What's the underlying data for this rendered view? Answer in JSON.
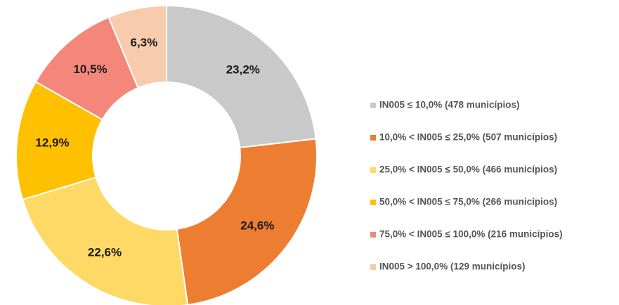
{
  "chart_data": {
    "type": "donut",
    "categories": [
      "IN005 ≤ 10,0% (478 municípios)",
      "10,0% < IN005 ≤ 25,0% (507 municípios)",
      "25,0% < IN005 ≤ 50,0% (466 municípios)",
      "50,0% < IN005 ≤ 75,0% (266 municípios)",
      "75,0% < IN005 ≤ 100,0% (216 municípios)",
      "IN005 > 100,0% (129 municípios)"
    ],
    "values": [
      23.2,
      24.6,
      22.6,
      12.9,
      10.5,
      6.3
    ],
    "value_labels": [
      "23,2%",
      "24,6%",
      "22,6%",
      "12,9%",
      "10,5%",
      "6,3%"
    ],
    "colors": [
      "#c9c9c9",
      "#ed7d31",
      "#ffd966",
      "#ffc000",
      "#f4877a",
      "#f8cbad"
    ]
  }
}
